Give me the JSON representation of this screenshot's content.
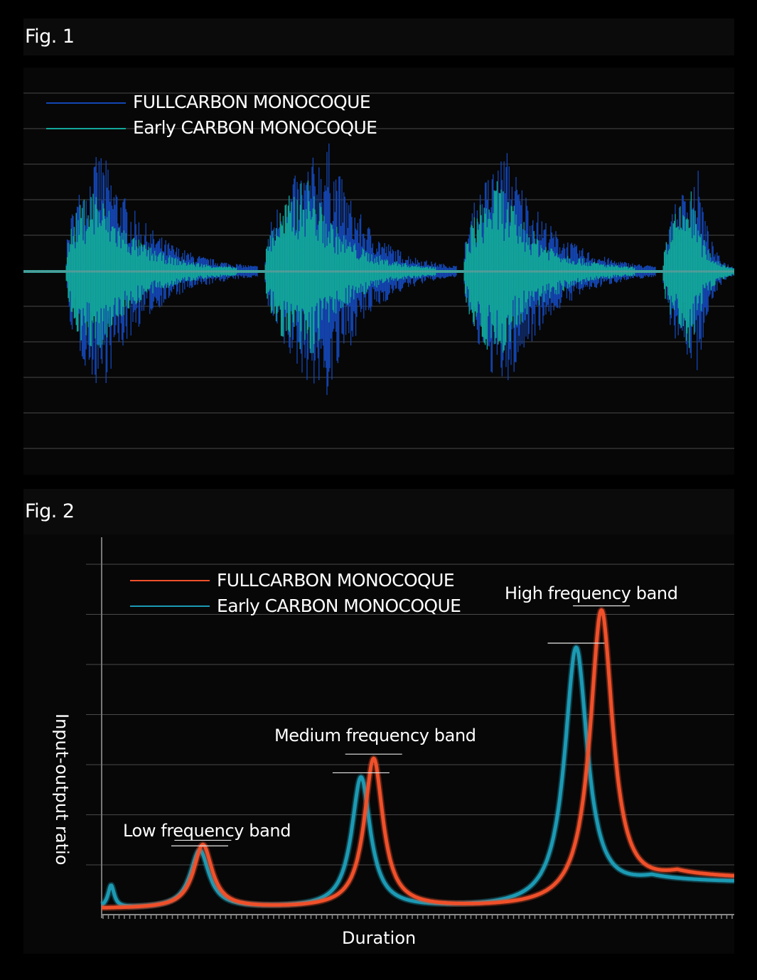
{
  "figures": {
    "fig1": {
      "label": "Fig. 1"
    },
    "fig2": {
      "label": "Fig. 2"
    }
  },
  "colors": {
    "fig1_fullcarbon": "#1446b4",
    "fig1_early": "#12a89a",
    "fig2_fullcarbon": "#f0502a",
    "fig2_early": "#1c9ab4",
    "gridline": "#4a4a4a"
  },
  "chart_data": [
    {
      "type": "line",
      "title": "",
      "legend_placement": "top-left",
      "grid": true,
      "series": [
        {
          "name": "FULLCARBON MONOCOQUE",
          "description_only": false,
          "bursts": [
            {
              "start": 0.06,
              "end": 0.33,
              "peak": 0.11,
              "amplitude": 0.9
            },
            {
              "start": 0.34,
              "end": 0.61,
              "peak": 0.43,
              "amplitude": 0.95
            },
            {
              "start": 0.62,
              "end": 0.89,
              "peak": 0.68,
              "amplitude": 0.9
            },
            {
              "start": 0.9,
              "end": 1.0,
              "peak": 0.95,
              "amplitude": 0.75
            }
          ]
        },
        {
          "name": "Early CARBON MONOCOQUE",
          "description_only": false,
          "bursts": [
            {
              "start": 0.06,
              "end": 0.3,
              "peak": 0.1,
              "amplitude": 0.65
            },
            {
              "start": 0.34,
              "end": 0.58,
              "peak": 0.4,
              "amplitude": 0.7
            },
            {
              "start": 0.62,
              "end": 0.86,
              "peak": 0.67,
              "amplitude": 0.68
            },
            {
              "start": 0.9,
              "end": 1.0,
              "peak": 0.94,
              "amplitude": 0.6
            }
          ]
        }
      ]
    },
    {
      "type": "line",
      "xlabel": "Duration",
      "ylabel": "Input-output ratio",
      "grid": true,
      "legend_placement": "top-left",
      "xlim": [
        0,
        1
      ],
      "ylim": [
        0,
        1
      ],
      "series": [
        {
          "name": "FULLCARBON MONOCOQUE",
          "peaks": [
            {
              "x": 0.16,
              "y": 0.17,
              "width": 0.018
            },
            {
              "x": 0.43,
              "y": 0.4,
              "width": 0.018
            },
            {
              "x": 0.79,
              "y": 0.8,
              "width": 0.022
            }
          ],
          "baseline": 0.015,
          "tail": 0.095
        },
        {
          "name": "Early CARBON MONOCOQUE",
          "peaks": [
            {
              "x": 0.015,
              "y": 0.06,
              "width": 0.006
            },
            {
              "x": 0.155,
              "y": 0.155,
              "width": 0.018
            },
            {
              "x": 0.41,
              "y": 0.35,
              "width": 0.018
            },
            {
              "x": 0.75,
              "y": 0.7,
              "width": 0.022
            }
          ],
          "baseline": 0.015,
          "tail": 0.085
        }
      ],
      "annotations": [
        {
          "text": "Low frequency band"
        },
        {
          "text": "Medium frequency band"
        },
        {
          "text": "High frequency band"
        }
      ]
    }
  ]
}
